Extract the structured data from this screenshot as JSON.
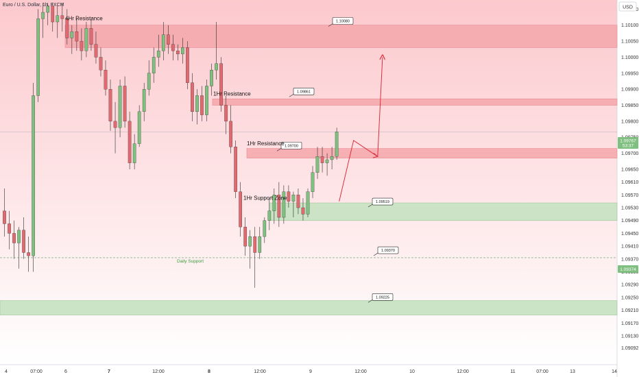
{
  "header": {
    "symbol_title": "Euro / U.S. Dollar, 1h, FXCM",
    "currency_button": "USD"
  },
  "price_badges": {
    "current_price": "1.09767",
    "countdown": "53:37",
    "crosshair_price": "1.09374"
  },
  "colors": {
    "bull": "#7fbf7f",
    "bear": "#e06a70",
    "resistance_zone": "#f5a7ab",
    "support_zone": "#c9e3c3",
    "arrow": "#d9303d",
    "background_top": "#fcc9cd",
    "background_bottom": "#ffffff",
    "daily_support_text": "#3aa03a"
  },
  "chart_data": {
    "type": "candlestick",
    "symbol": "EUR/USD",
    "timeframe": "1h",
    "y_axis": {
      "range": [
        1.0904,
        1.1017
      ],
      "ticks": [
        "1.10150",
        "1.10100",
        "1.10050",
        "1.10000",
        "1.09950",
        "1.09900",
        "1.09850",
        "1.09800",
        "1.09750",
        "1.09700",
        "1.09650",
        "1.09610",
        "1.09570",
        "1.09530",
        "1.09490",
        "1.09450",
        "1.09410",
        "1.09370",
        "1.09330",
        "1.09290",
        "1.09250",
        "1.09210",
        "1.09170",
        "1.09130",
        "1.09092"
      ]
    },
    "x_axis": {
      "ticks": [
        "4",
        "07:00",
        "6",
        "7",
        "12:00",
        "8",
        "12:00",
        "9",
        "12:00",
        "10",
        "12:00",
        "11",
        "07:00",
        "13",
        "14"
      ],
      "bars_range": [
        0,
        127
      ]
    },
    "candles": [
      {
        "i": 0,
        "o": 1.0952,
        "h": 1.0959,
        "l": 1.0944,
        "c": 1.0948
      },
      {
        "i": 1,
        "o": 1.0948,
        "h": 1.0952,
        "l": 1.094,
        "c": 1.0945
      },
      {
        "i": 2,
        "o": 1.0945,
        "h": 1.0949,
        "l": 1.0937,
        "c": 1.0942
      },
      {
        "i": 3,
        "o": 1.0942,
        "h": 1.0947,
        "l": 1.0934,
        "c": 1.0946
      },
      {
        "i": 4,
        "o": 1.0946,
        "h": 1.095,
        "l": 1.0937,
        "c": 1.0939
      },
      {
        "i": 5,
        "o": 1.0939,
        "h": 1.0944,
        "l": 1.0933,
        "c": 1.0938
      },
      {
        "i": 6,
        "o": 1.0938,
        "h": 1.0992,
        "l": 1.0933,
        "c": 1.0988
      },
      {
        "i": 7,
        "o": 1.0988,
        "h": 1.1015,
        "l": 1.0986,
        "c": 1.1012
      },
      {
        "i": 8,
        "o": 1.1012,
        "h": 1.1017,
        "l": 1.1006,
        "c": 1.1014
      },
      {
        "i": 9,
        "o": 1.1014,
        "h": 1.1017,
        "l": 1.101,
        "c": 1.1016
      },
      {
        "i": 10,
        "o": 1.1016,
        "h": 1.1017,
        "l": 1.1008,
        "c": 1.1011
      },
      {
        "i": 11,
        "o": 1.1011,
        "h": 1.1016,
        "l": 1.1006,
        "c": 1.1013
      },
      {
        "i": 12,
        "o": 1.1013,
        "h": 1.1017,
        "l": 1.1008,
        "c": 1.1012
      },
      {
        "i": 13,
        "o": 1.1012,
        "h": 1.1015,
        "l": 1.1004,
        "c": 1.1006
      },
      {
        "i": 14,
        "o": 1.1006,
        "h": 1.101,
        "l": 1.1001,
        "c": 1.1008
      },
      {
        "i": 15,
        "o": 1.1008,
        "h": 1.1012,
        "l": 1.1002,
        "c": 1.1005
      },
      {
        "i": 16,
        "o": 1.1005,
        "h": 1.1009,
        "l": 1.0999,
        "c": 1.1002
      },
      {
        "i": 17,
        "o": 1.1002,
        "h": 1.1011,
        "l": 1.1,
        "c": 1.1009
      },
      {
        "i": 18,
        "o": 1.1009,
        "h": 1.1012,
        "l": 1.1002,
        "c": 1.1004
      },
      {
        "i": 19,
        "o": 1.1004,
        "h": 1.1008,
        "l": 1.0998,
        "c": 1.1
      },
      {
        "i": 20,
        "o": 1.1,
        "h": 1.1003,
        "l": 1.0994,
        "c": 1.0996
      },
      {
        "i": 21,
        "o": 1.0996,
        "h": 1.0999,
        "l": 1.0988,
        "c": 1.099
      },
      {
        "i": 22,
        "o": 1.099,
        "h": 1.0993,
        "l": 1.0977,
        "c": 1.098
      },
      {
        "i": 23,
        "o": 1.098,
        "h": 1.0986,
        "l": 1.097,
        "c": 1.0978
      },
      {
        "i": 24,
        "o": 1.0978,
        "h": 1.0993,
        "l": 1.0975,
        "c": 1.0991
      },
      {
        "i": 25,
        "o": 1.0991,
        "h": 1.0994,
        "l": 1.0978,
        "c": 1.098
      },
      {
        "i": 26,
        "o": 1.098,
        "h": 1.0983,
        "l": 1.0965,
        "c": 1.0967
      },
      {
        "i": 27,
        "o": 1.0967,
        "h": 1.0976,
        "l": 1.0965,
        "c": 1.0973
      },
      {
        "i": 28,
        "o": 1.0973,
        "h": 1.0985,
        "l": 1.0972,
        "c": 1.0983
      },
      {
        "i": 29,
        "o": 1.0983,
        "h": 1.0992,
        "l": 1.098,
        "c": 1.099
      },
      {
        "i": 30,
        "o": 1.099,
        "h": 1.0999,
        "l": 1.0988,
        "c": 1.0995
      },
      {
        "i": 31,
        "o": 1.0995,
        "h": 1.1003,
        "l": 1.0992,
        "c": 1.1
      },
      {
        "i": 32,
        "o": 1.1,
        "h": 1.1007,
        "l": 1.0997,
        "c": 1.1002
      },
      {
        "i": 33,
        "o": 1.1002,
        "h": 1.1011,
        "l": 1.0999,
        "c": 1.1007
      },
      {
        "i": 34,
        "o": 1.1007,
        "h": 1.101,
        "l": 1.1001,
        "c": 1.1004
      },
      {
        "i": 35,
        "o": 1.1004,
        "h": 1.1007,
        "l": 1.0999,
        "c": 1.1002
      },
      {
        "i": 36,
        "o": 1.1002,
        "h": 1.1004,
        "l": 1.0999,
        "c": 1.1001
      },
      {
        "i": 37,
        "o": 1.1001,
        "h": 1.1006,
        "l": 1.0998,
        "c": 1.1003
      },
      {
        "i": 38,
        "o": 1.1003,
        "h": 1.1005,
        "l": 1.099,
        "c": 1.0992
      },
      {
        "i": 39,
        "o": 1.0992,
        "h": 1.0995,
        "l": 1.098,
        "c": 1.0983
      },
      {
        "i": 40,
        "o": 1.0983,
        "h": 1.099,
        "l": 1.0979,
        "c": 1.0988
      },
      {
        "i": 41,
        "o": 1.0988,
        "h": 1.0991,
        "l": 1.098,
        "c": 1.0982
      },
      {
        "i": 42,
        "o": 1.0982,
        "h": 1.0993,
        "l": 1.098,
        "c": 1.0991
      },
      {
        "i": 43,
        "o": 1.0991,
        "h": 1.0998,
        "l": 1.0988,
        "c": 1.0996
      },
      {
        "i": 44,
        "o": 1.0996,
        "h": 1.1011,
        "l": 1.0993,
        "c": 1.0998
      },
      {
        "i": 45,
        "o": 1.0998,
        "h": 1.1,
        "l": 1.0983,
        "c": 1.0985
      },
      {
        "i": 46,
        "o": 1.0985,
        "h": 1.0988,
        "l": 1.0976,
        "c": 1.098
      },
      {
        "i": 47,
        "o": 1.098,
        "h": 1.0985,
        "l": 1.097,
        "c": 1.0972
      },
      {
        "i": 48,
        "o": 1.0972,
        "h": 1.0974,
        "l": 1.0956,
        "c": 1.0958
      },
      {
        "i": 49,
        "o": 1.0958,
        "h": 1.0961,
        "l": 1.0944,
        "c": 1.0947
      },
      {
        "i": 50,
        "o": 1.0947,
        "h": 1.095,
        "l": 1.0938,
        "c": 1.0941
      },
      {
        "i": 51,
        "o": 1.0941,
        "h": 1.0946,
        "l": 1.0934,
        "c": 1.0944
      },
      {
        "i": 52,
        "o": 1.0944,
        "h": 1.0947,
        "l": 1.0928,
        "c": 1.0939
      },
      {
        "i": 53,
        "o": 1.0939,
        "h": 1.0947,
        "l": 1.0937,
        "c": 1.0944
      },
      {
        "i": 54,
        "o": 1.0944,
        "h": 1.095,
        "l": 1.0942,
        "c": 1.0949
      },
      {
        "i": 55,
        "o": 1.0949,
        "h": 1.0956,
        "l": 1.0946,
        "c": 1.0952
      },
      {
        "i": 56,
        "o": 1.0952,
        "h": 1.0959,
        "l": 1.0948,
        "c": 1.0957
      },
      {
        "i": 57,
        "o": 1.0957,
        "h": 1.0961,
        "l": 1.0947,
        "c": 1.095
      },
      {
        "i": 58,
        "o": 1.095,
        "h": 1.096,
        "l": 1.0948,
        "c": 1.0958
      },
      {
        "i": 59,
        "o": 1.0958,
        "h": 1.096,
        "l": 1.0953,
        "c": 1.0955
      },
      {
        "i": 60,
        "o": 1.0955,
        "h": 1.0958,
        "l": 1.095,
        "c": 1.0957
      },
      {
        "i": 61,
        "o": 1.0957,
        "h": 1.0959,
        "l": 1.0951,
        "c": 1.0953
      },
      {
        "i": 62,
        "o": 1.0953,
        "h": 1.0956,
        "l": 1.0949,
        "c": 1.0951
      },
      {
        "i": 63,
        "o": 1.0951,
        "h": 1.0959,
        "l": 1.095,
        "c": 1.0958
      },
      {
        "i": 64,
        "o": 1.0958,
        "h": 1.0966,
        "l": 1.0956,
        "c": 1.0964
      },
      {
        "i": 65,
        "o": 1.0964,
        "h": 1.0972,
        "l": 1.0962,
        "c": 1.0969
      },
      {
        "i": 66,
        "o": 1.0969,
        "h": 1.0972,
        "l": 1.0964,
        "c": 1.0967
      },
      {
        "i": 67,
        "o": 1.0967,
        "h": 1.097,
        "l": 1.0963,
        "c": 1.0968
      },
      {
        "i": 68,
        "o": 1.0968,
        "h": 1.0972,
        "l": 1.0965,
        "c": 1.0969
      },
      {
        "i": 69,
        "o": 1.0969,
        "h": 1.0978,
        "l": 1.0968,
        "c": 1.09767
      }
    ],
    "zones": [
      {
        "label": "4Hr Resistance",
        "type": "resistance",
        "from": 1.1003,
        "to": 1.101
      },
      {
        "label": "1Hr Resistance",
        "type": "resistance",
        "from": 1.0985,
        "to": 1.0987
      },
      {
        "label": "1Hr Resistance",
        "type": "resistance",
        "from": 1.09685,
        "to": 1.09715
      },
      {
        "label": "1Hr Support Zone",
        "type": "support",
        "from": 1.0949,
        "to": 1.09545
      },
      {
        "label": "",
        "type": "support",
        "from": 1.09195,
        "to": 1.0924
      }
    ],
    "horizontal_lines": [
      {
        "label": "Daily Support",
        "price": 1.09374,
        "style": "dashed"
      }
    ],
    "callouts": [
      "1.10080",
      "1.09861",
      "1.09700",
      "1.09519",
      "1.09370",
      "1.09225"
    ],
    "projection_path": [
      {
        "bar": 70,
        "price": 1.0955
      },
      {
        "bar": 73,
        "price": 1.0974
      },
      {
        "bar": 78,
        "price": 1.0969
      },
      {
        "bar": 79,
        "price": 1.1
      }
    ]
  }
}
